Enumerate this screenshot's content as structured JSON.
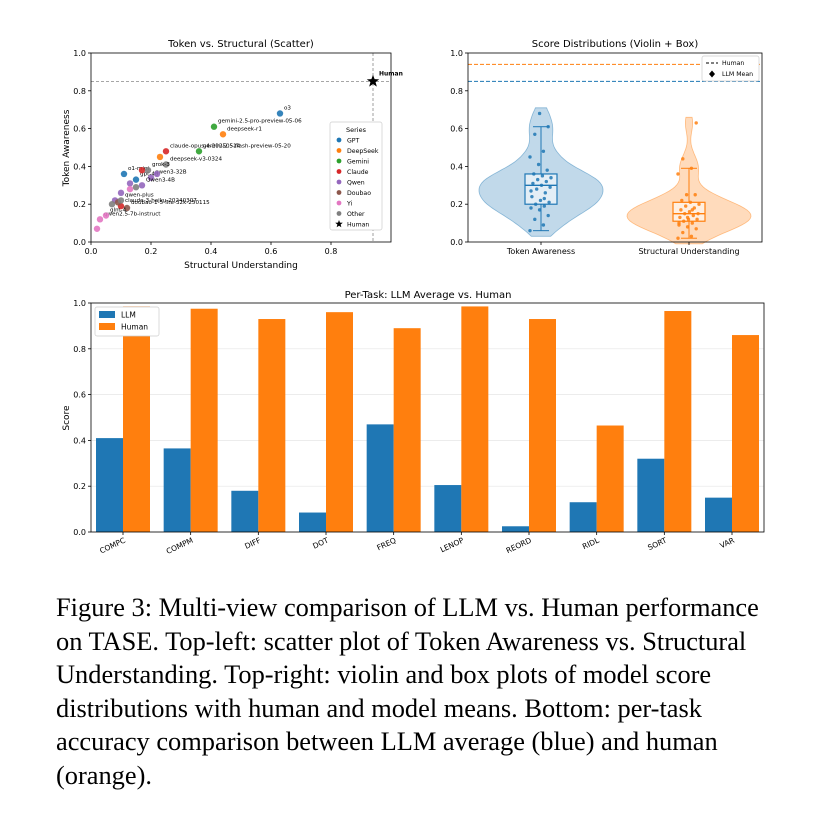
{
  "chart_data": [
    {
      "type": "scatter",
      "title": "Token vs. Structural (Scatter)",
      "xlabel": "Structural Understanding",
      "ylabel": "Token Awareness",
      "xlim": [
        0,
        1.0
      ],
      "ylim": [
        0,
        1.0
      ],
      "xticks": [
        "0.0",
        "0.2",
        "0.4",
        "0.6",
        "0.8"
      ],
      "yticks": [
        "0.0",
        "0.2",
        "0.4",
        "0.6",
        "0.8",
        "1.0"
      ],
      "legend_title": "Series",
      "legend_position": "center-right",
      "series": [
        {
          "name": "GPT",
          "color": "#1f77b4",
          "points": [
            {
              "x": 0.63,
              "y": 0.68,
              "label": "o3"
            },
            {
              "x": 0.11,
              "y": 0.36,
              "label": "o1-mini"
            },
            {
              "x": 0.15,
              "y": 0.33,
              "label": "gpt-4o"
            }
          ]
        },
        {
          "name": "DeepSeek",
          "color": "#ff7f0e",
          "points": [
            {
              "x": 0.44,
              "y": 0.57,
              "label": "deepseek-r1"
            },
            {
              "x": 0.23,
              "y": 0.45,
              "label": ""
            }
          ]
        },
        {
          "name": "Gemini",
          "color": "#2ca02c",
          "points": [
            {
              "x": 0.41,
              "y": 0.61,
              "label": "gemini-2.5-pro-preview-05-06"
            },
            {
              "x": 0.36,
              "y": 0.48,
              "label": "gemini-2.5-flash-preview-05-20"
            }
          ]
        },
        {
          "name": "Claude",
          "color": "#d62728",
          "points": [
            {
              "x": 0.25,
              "y": 0.48,
              "label": "claude-opus-4-20250514"
            },
            {
              "x": 0.17,
              "y": 0.38,
              "label": ""
            },
            {
              "x": 0.1,
              "y": 0.19,
              "label": "claude-3-haiku-20240307"
            }
          ]
        },
        {
          "name": "Qwen",
          "color": "#9467bd",
          "points": [
            {
              "x": 0.2,
              "y": 0.34,
              "label": "qwen3-32B"
            },
            {
              "x": 0.17,
              "y": 0.3,
              "label": "Qwen3-4B"
            },
            {
              "x": 0.1,
              "y": 0.26,
              "label": ""
            },
            {
              "x": 0.13,
              "y": 0.31,
              "label": ""
            },
            {
              "x": 0.08,
              "y": 0.22,
              "label": ""
            },
            {
              "x": 0.22,
              "y": 0.36,
              "label": ""
            }
          ]
        },
        {
          "name": "Doubao",
          "color": "#8c564b",
          "points": [
            {
              "x": 0.12,
              "y": 0.18,
              "label": "doubao-1-5-lite-32k-250115"
            },
            {
              "x": 0.09,
              "y": 0.21,
              "label": ""
            }
          ]
        },
        {
          "name": "Yi",
          "color": "#e377c2",
          "points": [
            {
              "x": 0.03,
              "y": 0.12,
              "label": "qwen2.5-7b-instruct"
            },
            {
              "x": 0.02,
              "y": 0.07,
              "label": ""
            },
            {
              "x": 0.05,
              "y": 0.14,
              "label": "glm-4"
            },
            {
              "x": 0.13,
              "y": 0.28,
              "label": ""
            }
          ]
        },
        {
          "name": "Other",
          "color": "#7f7f7f",
          "points": [
            {
              "x": 0.25,
              "y": 0.41,
              "label": "deepseek-v3-0324"
            },
            {
              "x": 0.19,
              "y": 0.38,
              "label": "grok-3"
            },
            {
              "x": 0.1,
              "y": 0.22,
              "label": "qwen-plus"
            },
            {
              "x": 0.07,
              "y": 0.2,
              "label": ""
            },
            {
              "x": 0.15,
              "y": 0.29,
              "label": ""
            }
          ]
        }
      ],
      "human": {
        "name": "Human",
        "x": 0.94,
        "y": 0.85,
        "label": "Human",
        "color": "#000000"
      }
    },
    {
      "type": "violin",
      "title": "Score Distributions (Violin + Box)",
      "categories": [
        "Token Awareness",
        "Structural Understanding"
      ],
      "ylim": [
        0,
        1.0
      ],
      "yticks": [
        "0.0",
        "0.2",
        "0.4",
        "0.6",
        "0.8",
        "1.0"
      ],
      "legend": [
        {
          "label": "Human",
          "style": "dashed-line"
        },
        {
          "label": "LLM Mean",
          "style": "diamond"
        }
      ],
      "legend_position": "top-right",
      "human_lines": [
        {
          "category": "Token Awareness",
          "y": 0.85,
          "color": "#1f77b4"
        },
        {
          "category": "Structural Understanding",
          "y": 0.94,
          "color": "#ff7f0e"
        }
      ],
      "series": [
        {
          "name": "Token Awareness",
          "color": "#1f77b4",
          "box": {
            "min": 0.06,
            "q1": 0.2,
            "median": 0.3,
            "q3": 0.36,
            "max": 0.61
          },
          "outliers": [
            0.68
          ],
          "points": [
            0.06,
            0.09,
            0.12,
            0.14,
            0.17,
            0.18,
            0.19,
            0.2,
            0.21,
            0.22,
            0.24,
            0.26,
            0.28,
            0.29,
            0.3,
            0.31,
            0.32,
            0.33,
            0.34,
            0.35,
            0.36,
            0.38,
            0.41,
            0.45,
            0.48,
            0.57,
            0.61,
            0.68,
            0.27,
            0.23
          ]
        },
        {
          "name": "Structural Understanding",
          "color": "#ff7f0e",
          "box": {
            "min": 0.02,
            "q1": 0.11,
            "median": 0.15,
            "q3": 0.21,
            "max": 0.39
          },
          "outliers": [
            0.44,
            0.63
          ],
          "points": [
            0.02,
            0.03,
            0.05,
            0.07,
            0.08,
            0.09,
            0.1,
            0.11,
            0.12,
            0.12,
            0.13,
            0.14,
            0.15,
            0.15,
            0.16,
            0.17,
            0.18,
            0.19,
            0.2,
            0.21,
            0.22,
            0.25,
            0.25,
            0.36,
            0.39,
            0.44,
            0.63,
            0.13,
            0.1,
            0.17
          ]
        }
      ]
    },
    {
      "type": "bar",
      "title": "Per-Task: LLM Average vs. Human",
      "xlabel": "",
      "ylabel": "Score",
      "ylim": [
        0,
        1.0
      ],
      "yticks": [
        "0.0",
        "0.2",
        "0.4",
        "0.6",
        "0.8",
        "1.0"
      ],
      "categories": [
        "COMPC",
        "COMPM",
        "DIFF",
        "DOT",
        "FREQ",
        "LENOP",
        "REORD",
        "RIDL",
        "SORT",
        "VAR"
      ],
      "legend_position": "top-left",
      "series": [
        {
          "name": "LLM",
          "color": "#1f77b4",
          "values": [
            0.41,
            0.365,
            0.18,
            0.085,
            0.47,
            0.205,
            0.025,
            0.13,
            0.32,
            0.15
          ]
        },
        {
          "name": "Human",
          "color": "#ff7f0e",
          "values": [
            0.985,
            0.975,
            0.93,
            0.96,
            0.89,
            0.985,
            0.93,
            0.465,
            0.965,
            0.86
          ]
        }
      ]
    }
  ],
  "caption": "Figure 3: Multi-view comparison of LLM vs. Human performance on TASE. Top-left: scatter plot of Token Awareness vs. Structural Understanding. Top-right: violin and box plots of model score distributions with human and model means. Bottom: per-task accuracy comparison between LLM average (blue) and human (orange)."
}
